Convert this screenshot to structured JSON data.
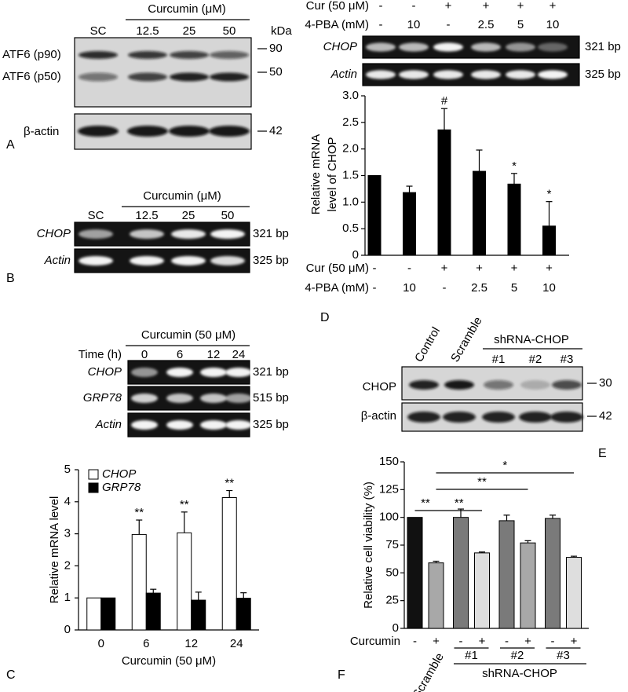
{
  "panel_labels": [
    "A",
    "B",
    "C",
    "D",
    "E",
    "F"
  ],
  "gel_A": {
    "header": "Curcumin (μM)",
    "lanes": [
      "SC",
      "12.5",
      "25",
      "50"
    ],
    "unit": "kDa",
    "rows": [
      "ATF6 (p90)",
      "ATF6 (p50)",
      "β-actin"
    ],
    "markers": [
      "90",
      "50",
      "42"
    ]
  },
  "gel_B": {
    "header": "Curcumin (μM)",
    "lanes": [
      "SC",
      "12.5",
      "25",
      "50"
    ],
    "rows": [
      {
        "name": "CHOP",
        "size": "321 bp"
      },
      {
        "name": "Actin",
        "size": "325 bp"
      }
    ]
  },
  "gel_C": {
    "header": "Curcumin (50 μM)",
    "lane_title": "Time (h)",
    "lanes": [
      "0",
      "6",
      "12",
      "24"
    ],
    "rows": [
      {
        "name": "CHOP",
        "size": "321 bp"
      },
      {
        "name": "GRP78",
        "size": "515 bp"
      },
      {
        "name": "Actin",
        "size": "325 bp"
      }
    ]
  },
  "gel_D": {
    "conditions": [
      {
        "name": "Cur (50 μM)",
        "labels": [
          "-",
          "-",
          "+",
          "+",
          "+",
          "+"
        ]
      },
      {
        "name": "4-PBA (mM)",
        "labels": [
          "-",
          "10",
          "-",
          "2.5",
          "5",
          "10"
        ]
      }
    ],
    "rows": [
      {
        "name": "CHOP",
        "size": "321 bp"
      },
      {
        "name": "Actin",
        "size": "325 bp"
      }
    ]
  },
  "gel_E": {
    "lanes": [
      "Control",
      "Scramble"
    ],
    "group": "shRNA-CHOP",
    "group_lanes": [
      "#1",
      "#2",
      "#3"
    ],
    "rows": [
      "CHOP",
      "β-actin"
    ],
    "markers": [
      "30",
      "42"
    ]
  },
  "chart_data": [
    {
      "type": "bar",
      "ylabel": "Relative mRNA level",
      "xlabel": "Curcumin (50 μM)",
      "categories": [
        "0",
        "6",
        "12",
        "24"
      ],
      "ylim": [
        0,
        5
      ],
      "yticks": [
        0,
        1,
        2,
        3,
        4,
        5
      ],
      "series": [
        {
          "name": "CHOP",
          "color": "#ffffff",
          "values": [
            1,
            2.98,
            3.03,
            4.13
          ],
          "errors": [
            null,
            0.45,
            0.65,
            0.22
          ],
          "significance": [
            null,
            "**",
            "**",
            "**"
          ]
        },
        {
          "name": "GRP78",
          "color": "#000000",
          "values": [
            1,
            1.15,
            0.93,
            0.99
          ],
          "errors": [
            null,
            0.12,
            0.25,
            0.17
          ]
        }
      ]
    },
    {
      "type": "bar",
      "ylabel": [
        "Relative mRNA",
        "level of CHOP"
      ],
      "ylim": [
        0,
        3
      ],
      "yticks": [
        0,
        0.5,
        {
          "value": 1,
          "label": "1.0"
        },
        1.5,
        {
          "value": 2,
          "label": "2.0"
        },
        2.5,
        {
          "value": 3,
          "label": "3.0"
        }
      ],
      "conditions": [
        {
          "name": "Cur (50 μM)",
          "labels": [
            "-",
            "-",
            "+",
            "+",
            "+",
            "+"
          ]
        },
        {
          "name": "4-PBA (mM)",
          "labels": [
            "-",
            "10",
            "-",
            "2.5",
            "5",
            "10"
          ]
        }
      ],
      "series": [
        {
          "color": "#000000",
          "values": [
            1.5,
            1.18,
            2.36,
            1.58,
            1.34,
            0.55
          ],
          "errors": [
            null,
            0.12,
            0.4,
            0.4,
            0.2,
            0.46
          ],
          "significance": [
            null,
            null,
            "#",
            null,
            "*",
            "*"
          ]
        }
      ]
    },
    {
      "type": "bar",
      "ylabel": "Relative cell viability (%)",
      "ylim": [
        0,
        150
      ],
      "yticks": [
        0,
        25,
        50,
        75,
        100,
        125,
        150
      ],
      "conditions": [
        {
          "name": "Curcumin",
          "labels": [
            "-",
            "+",
            "-",
            "+",
            "-",
            "+",
            "-",
            "+"
          ]
        }
      ],
      "groups": [
        "Scramble",
        "#1",
        "#2",
        "#3"
      ],
      "supergroup": "shRNA-CHOP",
      "series": [
        {
          "colors": [
            "#111111",
            "#a8a8a8",
            "#7a7a7a",
            "#dedede",
            "#7a7a7a",
            "#a8a8a8",
            "#7a7a7a",
            "#dedede"
          ],
          "values": [
            100,
            59,
            100,
            68,
            97,
            77,
            99,
            64
          ],
          "errors": [
            null,
            1.5,
            7.5,
            0.8,
            5,
            2,
            3,
            1
          ]
        }
      ],
      "comparisons": [
        {
          "bars": [
            0,
            1
          ],
          "label": "**"
        },
        {
          "bars": [
            1,
            3
          ],
          "label": "**"
        },
        {
          "bars": [
            1,
            5
          ],
          "label": "**"
        },
        {
          "bars": [
            1,
            7
          ],
          "label": "*"
        }
      ]
    }
  ]
}
